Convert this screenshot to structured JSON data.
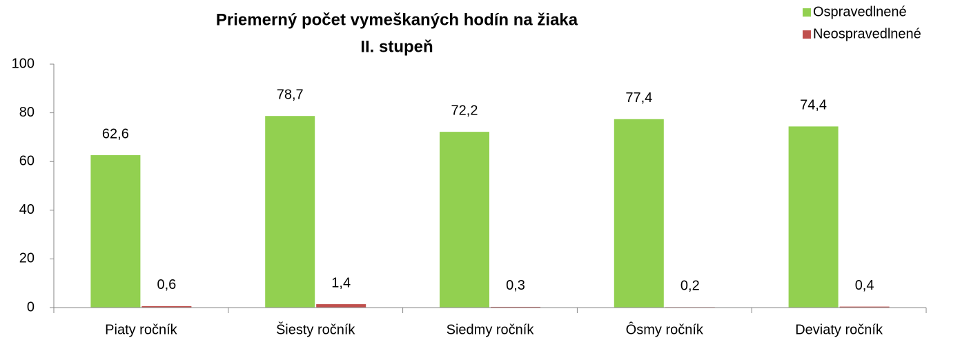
{
  "chart_data": {
    "type": "bar",
    "title": [
      "Priemerný počet vymeškaných hodín na žiaka",
      "II. stupeň"
    ],
    "categories": [
      "Piaty ročník",
      "Šiesty ročník",
      "Siedmy ročník",
      "Ôsmy ročník",
      "Deviaty ročník"
    ],
    "series": [
      {
        "name": "Ospravedlnené",
        "color": "#92d050",
        "values": [
          62.6,
          78.7,
          72.2,
          77.4,
          74.4
        ],
        "value_labels": [
          "62,6",
          "78,7",
          "72,2",
          "77,4",
          "74,4"
        ]
      },
      {
        "name": "Neospravedlnené",
        "color": "#c0504d",
        "values": [
          0.6,
          1.4,
          0.3,
          0.2,
          0.4
        ],
        "value_labels": [
          "0,6",
          "1,4",
          "0,3",
          "0,2",
          "0,4"
        ]
      }
    ],
    "ylim": [
      0,
      100
    ],
    "yticks": [
      0,
      20,
      40,
      60,
      80,
      100
    ],
    "grid": false,
    "legend": "top-right"
  }
}
